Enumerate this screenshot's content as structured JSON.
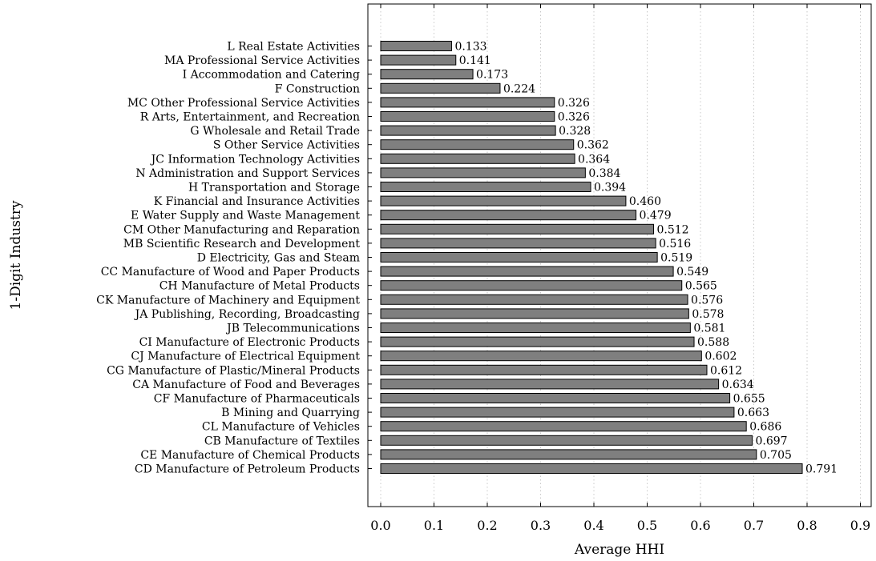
{
  "chart_data": {
    "type": "bar",
    "orientation": "horizontal",
    "title": "",
    "xlabel": "Average HHI",
    "ylabel": "1-Digit Industry",
    "xlim": [
      0,
      0.9
    ],
    "xticks": [
      "0.0",
      "0.1",
      "0.2",
      "0.3",
      "0.4",
      "0.5",
      "0.6",
      "0.7",
      "0.8",
      "0.9"
    ],
    "grid": "vertical-dotted",
    "bar_color": "#7f7f7f",
    "categories": [
      "L Real Estate Activities",
      "MA Professional Service Activities",
      "I Accommodation and Catering",
      "F Construction",
      "MC Other Professional Service Activities",
      "R Arts, Entertainment, and Recreation",
      "G Wholesale and Retail Trade",
      "S Other Service Activities",
      "JC Information Technology Activities",
      "N Administration and Support Services",
      "H Transportation and Storage",
      "K Financial and Insurance Activities",
      "E Water Supply and Waste Management",
      "CM Other Manufacturing and Reparation",
      "MB Scientific Research and Development",
      "D Electricity, Gas and Steam",
      "CC Manufacture of Wood and Paper Products",
      "CH Manufacture of Metal Products",
      "CK Manufacture of Machinery and Equipment",
      "JA Publishing, Recording, Broadcasting",
      "JB Telecommunications",
      "CI Manufacture of Electronic Products",
      "CJ Manufacture of Electrical Equipment",
      "CG Manufacture of Plastic/Mineral Products",
      "CA Manufacture of Food and Beverages",
      "CF Manufacture of Pharmaceuticals",
      "B Mining and Quarrying",
      "CL Manufacture of Vehicles",
      "CB Manufacture of Textiles",
      "CE Manufacture of Chemical Products",
      "CD Manufacture of Petroleum Products"
    ],
    "values": [
      0.133,
      0.141,
      0.173,
      0.224,
      0.326,
      0.326,
      0.328,
      0.362,
      0.364,
      0.384,
      0.394,
      0.46,
      0.479,
      0.512,
      0.516,
      0.519,
      0.549,
      0.565,
      0.576,
      0.578,
      0.581,
      0.588,
      0.602,
      0.612,
      0.634,
      0.655,
      0.663,
      0.686,
      0.697,
      0.705,
      0.791
    ],
    "value_labels": [
      "0.133",
      "0.141",
      "0.173",
      "0.224",
      "0.326",
      "0.326",
      "0.328",
      "0.362",
      "0.364",
      "0.384",
      "0.394",
      "0.460",
      "0.479",
      "0.512",
      "0.516",
      "0.519",
      "0.549",
      "0.565",
      "0.576",
      "0.578",
      "0.581",
      "0.588",
      "0.602",
      "0.612",
      "0.634",
      "0.655",
      "0.663",
      "0.686",
      "0.697",
      "0.705",
      "0.791"
    ]
  }
}
